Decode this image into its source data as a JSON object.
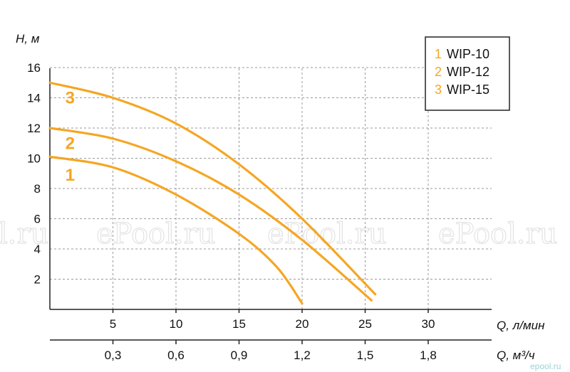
{
  "chart_data": {
    "type": "line",
    "title": "",
    "ylabel": "H, м",
    "xlabel": "Q, л/мин",
    "xlabel2": "Q, м³/ч",
    "ylim": [
      0,
      16
    ],
    "xlim": [
      0,
      35
    ],
    "yticks": [
      2,
      4,
      6,
      8,
      10,
      12,
      14,
      16
    ],
    "yticks_label": [
      "2",
      "4",
      "6",
      "8",
      "10",
      "12",
      "14",
      "16"
    ],
    "xticks": [
      5,
      10,
      15,
      20,
      25,
      30
    ],
    "xticks_label": [
      "5",
      "10",
      "15",
      "20",
      "25",
      "30"
    ],
    "x2ticks": [
      0.3,
      0.6,
      0.9,
      1.2,
      1.5,
      1.8
    ],
    "x2ticks_label": [
      "0,3",
      "0,6",
      "0,9",
      "1,2",
      "1,5",
      "1,8"
    ],
    "grid": true,
    "legend_position": "top-right",
    "series": [
      {
        "name": "WIP-10",
        "number": "1",
        "color": "#f5a623",
        "x": [
          0,
          5,
          10,
          15,
          18,
          20
        ],
        "y": [
          10.1,
          9.4,
          7.6,
          5.0,
          2.8,
          0.4
        ]
      },
      {
        "name": "WIP-12",
        "number": "2",
        "color": "#f5a623",
        "x": [
          0,
          5,
          10,
          15,
          20,
          25.5
        ],
        "y": [
          12.0,
          11.3,
          9.8,
          7.6,
          4.6,
          0.6
        ]
      },
      {
        "name": "WIP-15",
        "number": "3",
        "color": "#f5a623",
        "x": [
          0,
          5,
          10,
          15,
          20,
          25.8
        ],
        "y": [
          15.0,
          14.0,
          12.3,
          9.6,
          6.0,
          1.0
        ]
      }
    ]
  },
  "watermarks": [
    "l.ru",
    "ePool.ru",
    "ePool.ru",
    "ePool.ru"
  ],
  "corner_watermark": "epool.ru"
}
